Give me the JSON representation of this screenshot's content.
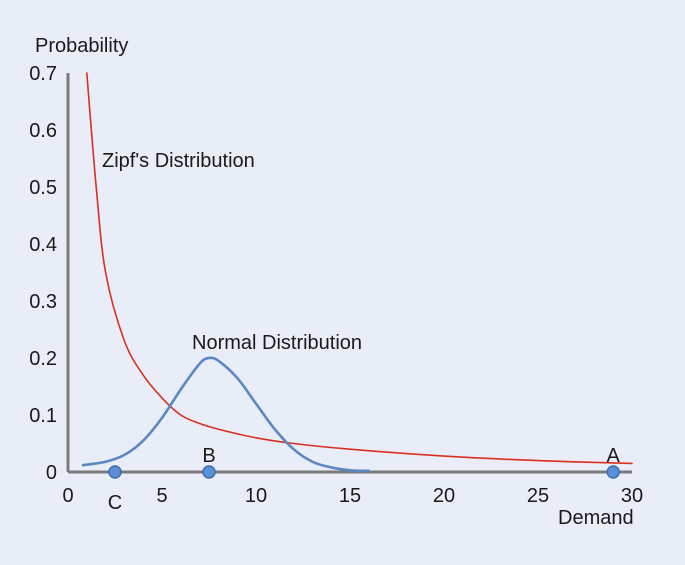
{
  "colors": {
    "background": "#e8edf8",
    "axis": "#7a7a7a",
    "zipf": "#d9301f",
    "normal": "#5b87c3",
    "point_fill": "#5b8fd6",
    "point_stroke": "#3e6db0"
  },
  "chart_data": {
    "type": "line",
    "title": "",
    "xlabel": "Demand",
    "ylabel": "Probability",
    "xlim": [
      0,
      30
    ],
    "ylim": [
      0,
      0.7
    ],
    "x_ticks": [
      0,
      5,
      10,
      15,
      20,
      25,
      30
    ],
    "y_ticks": [
      0,
      0.1,
      0.2,
      0.3,
      0.4,
      0.5,
      0.6,
      0.7
    ],
    "x_tick_labels": [
      "0",
      "5",
      "10",
      "15",
      "20",
      "25",
      "30"
    ],
    "y_tick_labels": [
      "0",
      "0.1",
      "0.2",
      "0.3",
      "0.4",
      "0.5",
      "0.6",
      "0.7"
    ],
    "grid": false,
    "series": [
      {
        "name": "Zipf's Distribution",
        "color_key": "zipf",
        "x": [
          1,
          1.5,
          2,
          3,
          4,
          5,
          6,
          7,
          8,
          10,
          12,
          15,
          20,
          25,
          30
        ],
        "y": [
          0.7,
          0.5,
          0.35,
          0.23,
          0.17,
          0.13,
          0.1,
          0.085,
          0.075,
          0.06,
          0.05,
          0.04,
          0.028,
          0.02,
          0.015
        ]
      },
      {
        "name": "Normal Distribution",
        "color_key": "normal",
        "x": [
          0.8,
          2,
          3,
          4,
          5,
          6,
          7,
          7.5,
          8,
          9,
          10,
          11,
          12,
          13,
          14,
          15,
          16
        ],
        "y": [
          0.012,
          0.018,
          0.03,
          0.055,
          0.095,
          0.145,
          0.19,
          0.2,
          0.195,
          0.165,
          0.12,
          0.075,
          0.04,
          0.018,
          0.008,
          0.003,
          0.002
        ]
      }
    ],
    "points": [
      {
        "label": "C",
        "x": 2.5,
        "y": 0
      },
      {
        "label": "B",
        "x": 7.5,
        "y": 0
      },
      {
        "label": "A",
        "x": 29,
        "y": 0
      }
    ]
  }
}
